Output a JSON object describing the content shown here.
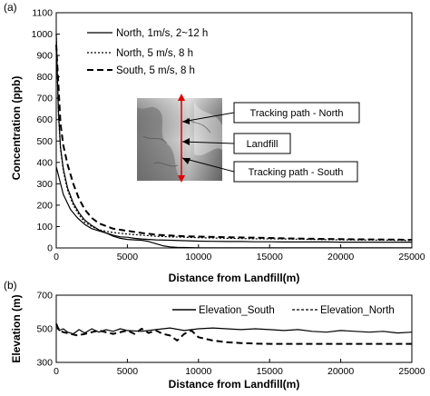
{
  "chart_data": [
    {
      "type": "line",
      "panel_label": "(a)",
      "xlabel": "Distance from Landfill(m)",
      "ylabel": "Concentration (ppb)",
      "xlim": [
        0,
        25000
      ],
      "ylim": [
        0,
        1100
      ],
      "x_ticks": [
        0,
        5000,
        10000,
        15000,
        20000,
        25000
      ],
      "y_ticks": [
        0,
        100,
        200,
        300,
        400,
        500,
        600,
        700,
        800,
        900,
        1000,
        1100
      ],
      "grid": false,
      "legend_position": "top-left",
      "series": [
        {
          "name": "North, 1m/s, 2~12 h",
          "style": "solid",
          "x": [
            0,
            150,
            300,
            500,
            800,
            1200,
            1600,
            2000,
            2500,
            3000,
            3500,
            4000,
            4500,
            5000,
            5500,
            6000,
            6500,
            7000,
            7500,
            8000,
            8500,
            9000,
            10000,
            12000,
            14000,
            16000,
            18000,
            19000,
            20000,
            22000,
            25000
          ],
          "y": [
            1000,
            640,
            470,
            370,
            280,
            210,
            165,
            130,
            105,
            85,
            70,
            55,
            45,
            40,
            38,
            36,
            30,
            20,
            10,
            5,
            3,
            2,
            1,
            1,
            1,
            1,
            1,
            1,
            1,
            1,
            1
          ]
        },
        {
          "name": "North, 5 m/s, 8 h",
          "style": "dotted",
          "x": [
            0,
            150,
            300,
            500,
            800,
            1200,
            1600,
            2000,
            2500,
            3000,
            3500,
            4000,
            5000,
            6000,
            7000,
            8000,
            9000,
            10000,
            12000,
            14000,
            16000,
            18000,
            19000,
            20000,
            22000,
            24000,
            25000
          ],
          "y": [
            1000,
            620,
            460,
            360,
            270,
            200,
            155,
            120,
            100,
            85,
            78,
            72,
            65,
            60,
            55,
            52,
            50,
            48,
            45,
            43,
            42,
            40,
            39,
            38,
            37,
            36,
            35
          ]
        },
        {
          "name": "South, 5 m/s, 8 h",
          "style": "dashed",
          "x": [
            0,
            300,
            500,
            800,
            1200,
            1600,
            2000,
            2500,
            3000,
            4000,
            5000,
            6000,
            7000,
            8000,
            9000,
            10000,
            12000,
            14000,
            16000,
            18000,
            20000,
            22000,
            24000,
            25000
          ],
          "y": [
            950,
            580,
            480,
            390,
            300,
            230,
            180,
            140,
            115,
            90,
            80,
            70,
            62,
            58,
            55,
            53,
            50,
            48,
            45,
            43,
            41,
            40,
            39,
            38
          ]
        },
        {
          "name": "",
          "style": "solid",
          "x": [
            0,
            500,
            1000,
            1500,
            2000,
            2500,
            3000,
            3500,
            4000,
            4500,
            5000,
            5500,
            6000,
            7000,
            8000,
            9000,
            10000,
            11000,
            12000,
            13000,
            14000,
            15000,
            16000,
            17000,
            18000,
            19000,
            20000,
            21000,
            22000,
            23000,
            24000,
            25000
          ],
          "y": [
            380,
            250,
            180,
            140,
            110,
            90,
            80,
            70,
            60,
            52,
            50,
            45,
            42,
            38,
            36,
            34,
            32,
            31,
            30,
            30,
            29,
            29,
            28,
            28,
            28,
            28,
            27,
            27,
            27,
            27,
            27,
            27
          ]
        }
      ],
      "callouts": [
        "Tracking path - North",
        "Landfill",
        "Tracking path - South"
      ],
      "inset_map_colors": {
        "terrain_dark": "#5a5a5a",
        "terrain_light": "#e6e6e6",
        "path": "#e00000"
      }
    },
    {
      "type": "line",
      "panel_label": "(b)",
      "xlabel": "Distance from Landfill(m)",
      "ylabel": "Elevation (m)",
      "xlim": [
        0,
        25000
      ],
      "ylim": [
        300,
        700
      ],
      "x_ticks": [
        0,
        5000,
        10000,
        15000,
        20000,
        25000
      ],
      "y_ticks": [
        300,
        500,
        700
      ],
      "grid": false,
      "legend_position": "top-right",
      "series": [
        {
          "name": "Elevation_South",
          "style": "solid",
          "x": [
            0,
            200,
            500,
            800,
            1200,
            1600,
            2000,
            2500,
            3000,
            3500,
            4000,
            4500,
            5000,
            6000,
            7000,
            8000,
            9000,
            10000,
            11000,
            12000,
            13000,
            14000,
            15000,
            16000,
            17000,
            18000,
            19000,
            20000,
            21000,
            22000,
            23000,
            24000,
            25000
          ],
          "y": [
            530,
            490,
            500,
            480,
            470,
            495,
            475,
            500,
            480,
            495,
            485,
            500,
            490,
            485,
            495,
            505,
            490,
            500,
            505,
            500,
            495,
            500,
            495,
            490,
            495,
            485,
            480,
            490,
            485,
            480,
            485,
            475,
            480
          ]
        },
        {
          "name": "Elevation_North",
          "style": "dashed",
          "x": [
            0,
            200,
            500,
            1000,
            1500,
            2000,
            3000,
            4000,
            5000,
            5500,
            6000,
            6500,
            7000,
            7500,
            8000,
            8500,
            9000,
            9500,
            10000,
            11000,
            12000,
            13000,
            14000,
            15000,
            17000,
            20000,
            23000,
            25000
          ],
          "y": [
            530,
            490,
            480,
            470,
            460,
            470,
            490,
            470,
            490,
            470,
            500,
            475,
            490,
            470,
            460,
            430,
            470,
            490,
            450,
            430,
            420,
            415,
            412,
            410,
            410,
            410,
            410,
            410
          ]
        }
      ]
    }
  ]
}
